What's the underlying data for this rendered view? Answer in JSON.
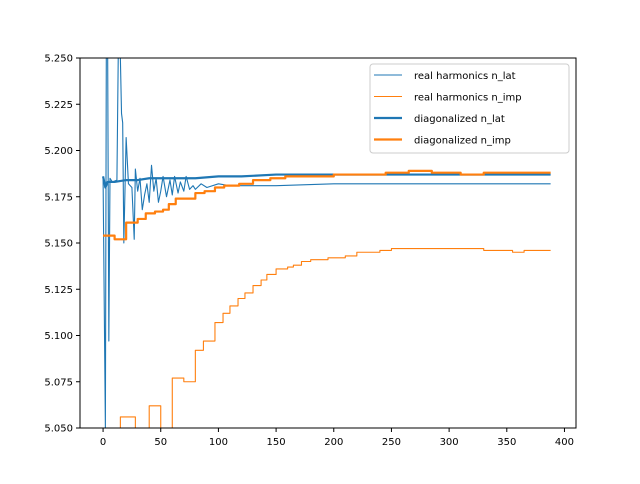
{
  "chart_data": {
    "type": "line",
    "title": "",
    "xlabel": "",
    "ylabel": "",
    "xlim": [
      -20,
      410
    ],
    "ylim": [
      5.05,
      5.25
    ],
    "xticks": [
      0,
      50,
      100,
      150,
      200,
      250,
      300,
      350,
      400
    ],
    "yticks": [
      5.05,
      5.075,
      5.1,
      5.125,
      5.15,
      5.175,
      5.2,
      5.225,
      5.25
    ],
    "ytick_labels": [
      "5.050",
      "5.075",
      "5.100",
      "5.125",
      "5.150",
      "5.175",
      "5.200",
      "5.225",
      "5.250"
    ],
    "xtick_labels": [
      "0",
      "50",
      "100",
      "150",
      "200",
      "250",
      "300",
      "350",
      "400"
    ],
    "grid": false,
    "legend_position": "top-right",
    "series": [
      {
        "name": "real harmonics n_lat",
        "color": "#1f77b4",
        "width": 1,
        "step": false,
        "points": [
          [
            0,
            5.186
          ],
          [
            2,
            5.05
          ],
          [
            3,
            5.3
          ],
          [
            4,
            5.25
          ],
          [
            5,
            5.097
          ],
          [
            6,
            5.185
          ],
          [
            8,
            5.183
          ],
          [
            12,
            5.184
          ],
          [
            14,
            5.3
          ],
          [
            15,
            5.25
          ],
          [
            16,
            5.22
          ],
          [
            17,
            5.215
          ],
          [
            18,
            5.15
          ],
          [
            20,
            5.207
          ],
          [
            22,
            5.182
          ],
          [
            25,
            5.18
          ],
          [
            27,
            5.152
          ],
          [
            28,
            5.19
          ],
          [
            30,
            5.178
          ],
          [
            32,
            5.185
          ],
          [
            34,
            5.168
          ],
          [
            36,
            5.176
          ],
          [
            38,
            5.182
          ],
          [
            40,
            5.172
          ],
          [
            42,
            5.192
          ],
          [
            44,
            5.178
          ],
          [
            46,
            5.185
          ],
          [
            48,
            5.172
          ],
          [
            50,
            5.178
          ],
          [
            52,
            5.186
          ],
          [
            55,
            5.175
          ],
          [
            58,
            5.184
          ],
          [
            60,
            5.176
          ],
          [
            62,
            5.186
          ],
          [
            65,
            5.177
          ],
          [
            67,
            5.183
          ],
          [
            70,
            5.178
          ],
          [
            72,
            5.186
          ],
          [
            75,
            5.179
          ],
          [
            78,
            5.181
          ],
          [
            80,
            5.179
          ],
          [
            85,
            5.182
          ],
          [
            90,
            5.18
          ],
          [
            100,
            5.182
          ],
          [
            110,
            5.181
          ],
          [
            150,
            5.181
          ],
          [
            200,
            5.182
          ],
          [
            250,
            5.182
          ],
          [
            300,
            5.182
          ],
          [
            350,
            5.182
          ],
          [
            388,
            5.182
          ]
        ]
      },
      {
        "name": "real harmonics n_imp",
        "color": "#ff7f0e",
        "width": 1,
        "step": true,
        "points": [
          [
            0,
            5.04
          ],
          [
            15,
            5.056
          ],
          [
            28,
            5.04
          ],
          [
            40,
            5.062
          ],
          [
            50,
            5.04
          ],
          [
            60,
            5.077
          ],
          [
            70,
            5.075
          ],
          [
            80,
            5.092
          ],
          [
            87,
            5.097
          ],
          [
            97,
            5.107
          ],
          [
            104,
            5.112
          ],
          [
            110,
            5.116
          ],
          [
            117,
            5.12
          ],
          [
            123,
            5.123
          ],
          [
            130,
            5.127
          ],
          [
            137,
            5.13
          ],
          [
            142,
            5.133
          ],
          [
            150,
            5.136
          ],
          [
            160,
            5.137
          ],
          [
            165,
            5.138
          ],
          [
            172,
            5.14
          ],
          [
            180,
            5.141
          ],
          [
            195,
            5.142
          ],
          [
            210,
            5.143
          ],
          [
            220,
            5.145
          ],
          [
            240,
            5.146
          ],
          [
            250,
            5.147
          ],
          [
            270,
            5.147
          ],
          [
            300,
            5.147
          ],
          [
            320,
            5.147
          ],
          [
            330,
            5.146
          ],
          [
            345,
            5.146
          ],
          [
            355,
            5.145
          ],
          [
            365,
            5.146
          ],
          [
            380,
            5.146
          ],
          [
            388,
            5.146
          ]
        ]
      },
      {
        "name": "diagonalized n_lat",
        "color": "#1f77b4",
        "width": 2,
        "step": false,
        "points": [
          [
            0,
            5.186
          ],
          [
            2,
            5.18
          ],
          [
            4,
            5.183
          ],
          [
            10,
            5.183
          ],
          [
            20,
            5.184
          ],
          [
            30,
            5.184
          ],
          [
            40,
            5.185
          ],
          [
            50,
            5.185
          ],
          [
            60,
            5.185
          ],
          [
            80,
            5.185
          ],
          [
            100,
            5.186
          ],
          [
            120,
            5.186
          ],
          [
            150,
            5.187
          ],
          [
            200,
            5.187
          ],
          [
            250,
            5.187
          ],
          [
            300,
            5.187
          ],
          [
            350,
            5.187
          ],
          [
            388,
            5.187
          ]
        ]
      },
      {
        "name": "diagonalized n_imp",
        "color": "#ff7f0e",
        "width": 2,
        "step": true,
        "points": [
          [
            0,
            5.154
          ],
          [
            10,
            5.152
          ],
          [
            20,
            5.161
          ],
          [
            30,
            5.163
          ],
          [
            37,
            5.166
          ],
          [
            45,
            5.167
          ],
          [
            52,
            5.168
          ],
          [
            57,
            5.171
          ],
          [
            63,
            5.174
          ],
          [
            80,
            5.177
          ],
          [
            88,
            5.178
          ],
          [
            97,
            5.18
          ],
          [
            105,
            5.181
          ],
          [
            118,
            5.182
          ],
          [
            130,
            5.184
          ],
          [
            145,
            5.185
          ],
          [
            158,
            5.186
          ],
          [
            200,
            5.187
          ],
          [
            230,
            5.187
          ],
          [
            245,
            5.188
          ],
          [
            265,
            5.189
          ],
          [
            285,
            5.188
          ],
          [
            310,
            5.187
          ],
          [
            330,
            5.188
          ],
          [
            350,
            5.188
          ],
          [
            388,
            5.188
          ]
        ]
      }
    ]
  }
}
